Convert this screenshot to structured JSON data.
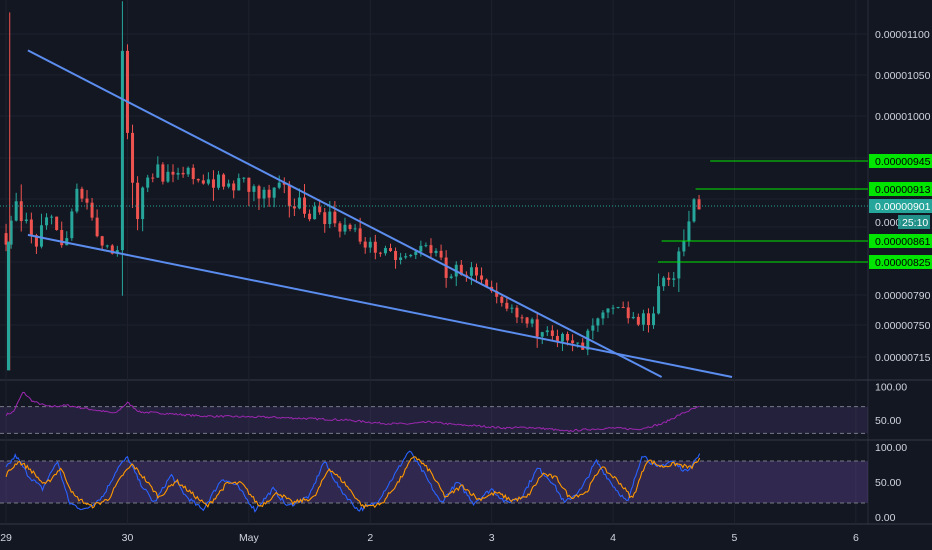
{
  "chart_data": [
    {
      "type": "candlestick",
      "pane": "price",
      "title": "",
      "ylim": [
        7e-06,
        1.13e-05
      ],
      "y_ticks": [
        "0.00001100",
        "0.00001050",
        "0.00001000",
        "0.00000790",
        "0.00000750",
        "0.00000715"
      ],
      "x_ticks": [
        "29",
        "30",
        "May",
        "2",
        "3",
        "4",
        "5",
        "6"
      ],
      "x_range": [
        -0.05,
        7.1
      ],
      "current_price": "0.00000901",
      "countdown": "25:10",
      "clipped_label": "0.000",
      "hidden_tick_values": [
        9.45e-06,
        9.13e-06,
        8.61e-06,
        8.25e-06
      ],
      "trendlines": [
        {
          "from": [
            0.18,
            1.08e-05
          ],
          "to": [
            5.4,
            7e-06
          ]
        },
        {
          "from": [
            0.18,
            8.68e-06
          ],
          "to": [
            5.98,
            7e-06
          ]
        }
      ],
      "horizontal_levels": [
        {
          "label": "0.00000945",
          "value": 9.45e-06,
          "from_x": 5.8
        },
        {
          "label": "0.00000913",
          "value": 9.13e-06,
          "from_x": 5.68
        },
        {
          "label": "0.00000861",
          "value": 8.61e-06,
          "from_x": 5.4
        },
        {
          "label": "0.00000825",
          "value": 8.25e-06,
          "from_x": 5.37
        }
      ],
      "grid": true,
      "keypoints": [
        [
          0.0,
          8.7e-06
        ],
        [
          0.05,
          8.4e-06
        ],
        [
          0.12,
          9.15e-06
        ],
        [
          0.2,
          8.8e-06
        ],
        [
          0.28,
          8.55e-06
        ],
        [
          0.36,
          8.75e-06
        ],
        [
          0.44,
          8.9e-06
        ],
        [
          0.52,
          8.45e-06
        ],
        [
          0.6,
          9e-06
        ],
        [
          0.68,
          9.2e-06
        ],
        [
          0.76,
          8.8e-06
        ],
        [
          0.84,
          8.6e-06
        ],
        [
          0.92,
          8.4e-06
        ],
        [
          0.98,
          8.6e-06
        ],
        [
          1.0,
          1.07e-05
        ],
        [
          1.06,
          9.5e-06
        ],
        [
          1.12,
          8.9e-06
        ],
        [
          1.2,
          9.3e-06
        ],
        [
          1.3,
          9.35e-06
        ],
        [
          1.4,
          9.2e-06
        ],
        [
          1.55,
          9.3e-06
        ],
        [
          1.7,
          9.25e-06
        ],
        [
          1.85,
          9.15e-06
        ],
        [
          2.0,
          9.2e-06
        ],
        [
          2.15,
          9.05e-06
        ],
        [
          2.3,
          9.1e-06
        ],
        [
          2.45,
          9e-06
        ],
        [
          2.6,
          8.95e-06
        ],
        [
          2.75,
          8.85e-06
        ],
        [
          2.9,
          8.7e-06
        ],
        [
          3.05,
          8.5e-06
        ],
        [
          3.2,
          8.35e-06
        ],
        [
          3.3,
          8.3e-06
        ],
        [
          3.4,
          8.35e-06
        ],
        [
          3.5,
          8.6e-06
        ],
        [
          3.6,
          8.3e-06
        ],
        [
          3.7,
          8.1e-06
        ],
        [
          3.8,
          8.2e-06
        ],
        [
          3.9,
          8.1e-06
        ],
        [
          4.0,
          7.9e-06
        ],
        [
          4.1,
          7.75e-06
        ],
        [
          4.2,
          7.65e-06
        ],
        [
          4.3,
          7.55e-06
        ],
        [
          4.4,
          7.45e-06
        ],
        [
          4.5,
          7.55e-06
        ],
        [
          4.6,
          7.35e-06
        ],
        [
          4.7,
          7.25e-06
        ],
        [
          4.78,
          7.22e-06
        ],
        [
          4.86,
          7.42e-06
        ],
        [
          4.95,
          7.58e-06
        ],
        [
          5.05,
          7.68e-06
        ],
        [
          5.15,
          7.65e-06
        ],
        [
          5.25,
          7.52e-06
        ],
        [
          5.35,
          7.6e-06
        ],
        [
          5.45,
          8.15e-06
        ],
        [
          5.52,
          7.9e-06
        ],
        [
          5.6,
          8.6e-06
        ],
        [
          5.66,
          8.85e-06
        ],
        [
          5.72,
          9.01e-06
        ]
      ]
    },
    {
      "type": "line",
      "pane": "rsi",
      "ylim": [
        20,
        110
      ],
      "y_ticks": [
        "100.00",
        "50.00"
      ],
      "bands": [
        70,
        30
      ],
      "keypoints": [
        [
          0.0,
          58
        ],
        [
          0.06,
          62
        ],
        [
          0.14,
          92
        ],
        [
          0.22,
          78
        ],
        [
          0.35,
          70
        ],
        [
          0.5,
          72
        ],
        [
          0.7,
          66
        ],
        [
          0.9,
          60
        ],
        [
          1.0,
          76
        ],
        [
          1.1,
          62
        ],
        [
          1.3,
          60
        ],
        [
          1.6,
          56
        ],
        [
          1.9,
          55
        ],
        [
          2.2,
          54
        ],
        [
          2.5,
          52
        ],
        [
          2.8,
          50
        ],
        [
          3.1,
          45
        ],
        [
          3.3,
          44
        ],
        [
          3.5,
          47
        ],
        [
          3.7,
          43
        ],
        [
          3.9,
          41
        ],
        [
          4.1,
          38
        ],
        [
          4.3,
          39
        ],
        [
          4.5,
          36
        ],
        [
          4.6,
          33
        ],
        [
          4.8,
          36
        ],
        [
          5.0,
          38
        ],
        [
          5.2,
          36
        ],
        [
          5.4,
          44
        ],
        [
          5.55,
          58
        ],
        [
          5.65,
          66
        ],
        [
          5.72,
          70
        ]
      ]
    },
    {
      "type": "line",
      "pane": "stoch",
      "ylim": [
        -10,
        110
      ],
      "y_ticks": [
        "100.00",
        "50.00",
        "0.00"
      ],
      "bands": [
        80,
        20
      ],
      "series": [
        {
          "color": "#2962ff",
          "keypoints": [
            [
              0.0,
              70
            ],
            [
              0.08,
              88
            ],
            [
              0.18,
              60
            ],
            [
              0.3,
              40
            ],
            [
              0.42,
              80
            ],
            [
              0.52,
              20
            ],
            [
              0.65,
              10
            ],
            [
              0.8,
              30
            ],
            [
              0.92,
              70
            ],
            [
              1.0,
              85
            ],
            [
              1.1,
              50
            ],
            [
              1.22,
              20
            ],
            [
              1.36,
              60
            ],
            [
              1.48,
              30
            ],
            [
              1.62,
              10
            ],
            [
              1.78,
              55
            ],
            [
              1.9,
              45
            ],
            [
              2.05,
              10
            ],
            [
              2.2,
              40
            ],
            [
              2.32,
              15
            ],
            [
              2.5,
              30
            ],
            [
              2.62,
              80
            ],
            [
              2.75,
              40
            ],
            [
              2.9,
              10
            ],
            [
              3.05,
              20
            ],
            [
              3.2,
              60
            ],
            [
              3.32,
              95
            ],
            [
              3.45,
              60
            ],
            [
              3.58,
              20
            ],
            [
              3.72,
              50
            ],
            [
              3.85,
              20
            ],
            [
              4.0,
              40
            ],
            [
              4.12,
              20
            ],
            [
              4.25,
              30
            ],
            [
              4.38,
              70
            ],
            [
              4.5,
              50
            ],
            [
              4.6,
              20
            ],
            [
              4.74,
              40
            ],
            [
              4.86,
              80
            ],
            [
              5.0,
              45
            ],
            [
              5.12,
              20
            ],
            [
              5.24,
              90
            ],
            [
              5.36,
              70
            ],
            [
              5.48,
              80
            ],
            [
              5.6,
              65
            ],
            [
              5.72,
              90
            ]
          ]
        },
        {
          "color": "#ff9800",
          "keypoints": [
            [
              0.0,
              60
            ],
            [
              0.1,
              80
            ],
            [
              0.2,
              68
            ],
            [
              0.32,
              45
            ],
            [
              0.45,
              70
            ],
            [
              0.56,
              30
            ],
            [
              0.7,
              15
            ],
            [
              0.84,
              25
            ],
            [
              0.96,
              60
            ],
            [
              1.04,
              75
            ],
            [
              1.14,
              55
            ],
            [
              1.26,
              28
            ],
            [
              1.4,
              52
            ],
            [
              1.52,
              35
            ],
            [
              1.66,
              15
            ],
            [
              1.82,
              48
            ],
            [
              1.94,
              48
            ],
            [
              2.09,
              15
            ],
            [
              2.24,
              35
            ],
            [
              2.36,
              20
            ],
            [
              2.54,
              28
            ],
            [
              2.66,
              70
            ],
            [
              2.79,
              48
            ],
            [
              2.94,
              15
            ],
            [
              3.09,
              18
            ],
            [
              3.24,
              52
            ],
            [
              3.36,
              88
            ],
            [
              3.49,
              66
            ],
            [
              3.62,
              28
            ],
            [
              3.76,
              45
            ],
            [
              3.89,
              25
            ],
            [
              4.04,
              35
            ],
            [
              4.16,
              24
            ],
            [
              4.29,
              28
            ],
            [
              4.42,
              62
            ],
            [
              4.54,
              55
            ],
            [
              4.64,
              28
            ],
            [
              4.78,
              35
            ],
            [
              4.9,
              72
            ],
            [
              5.04,
              52
            ],
            [
              5.16,
              26
            ],
            [
              5.28,
              82
            ],
            [
              5.4,
              72
            ],
            [
              5.52,
              76
            ],
            [
              5.64,
              70
            ],
            [
              5.72,
              84
            ]
          ]
        }
      ]
    }
  ]
}
